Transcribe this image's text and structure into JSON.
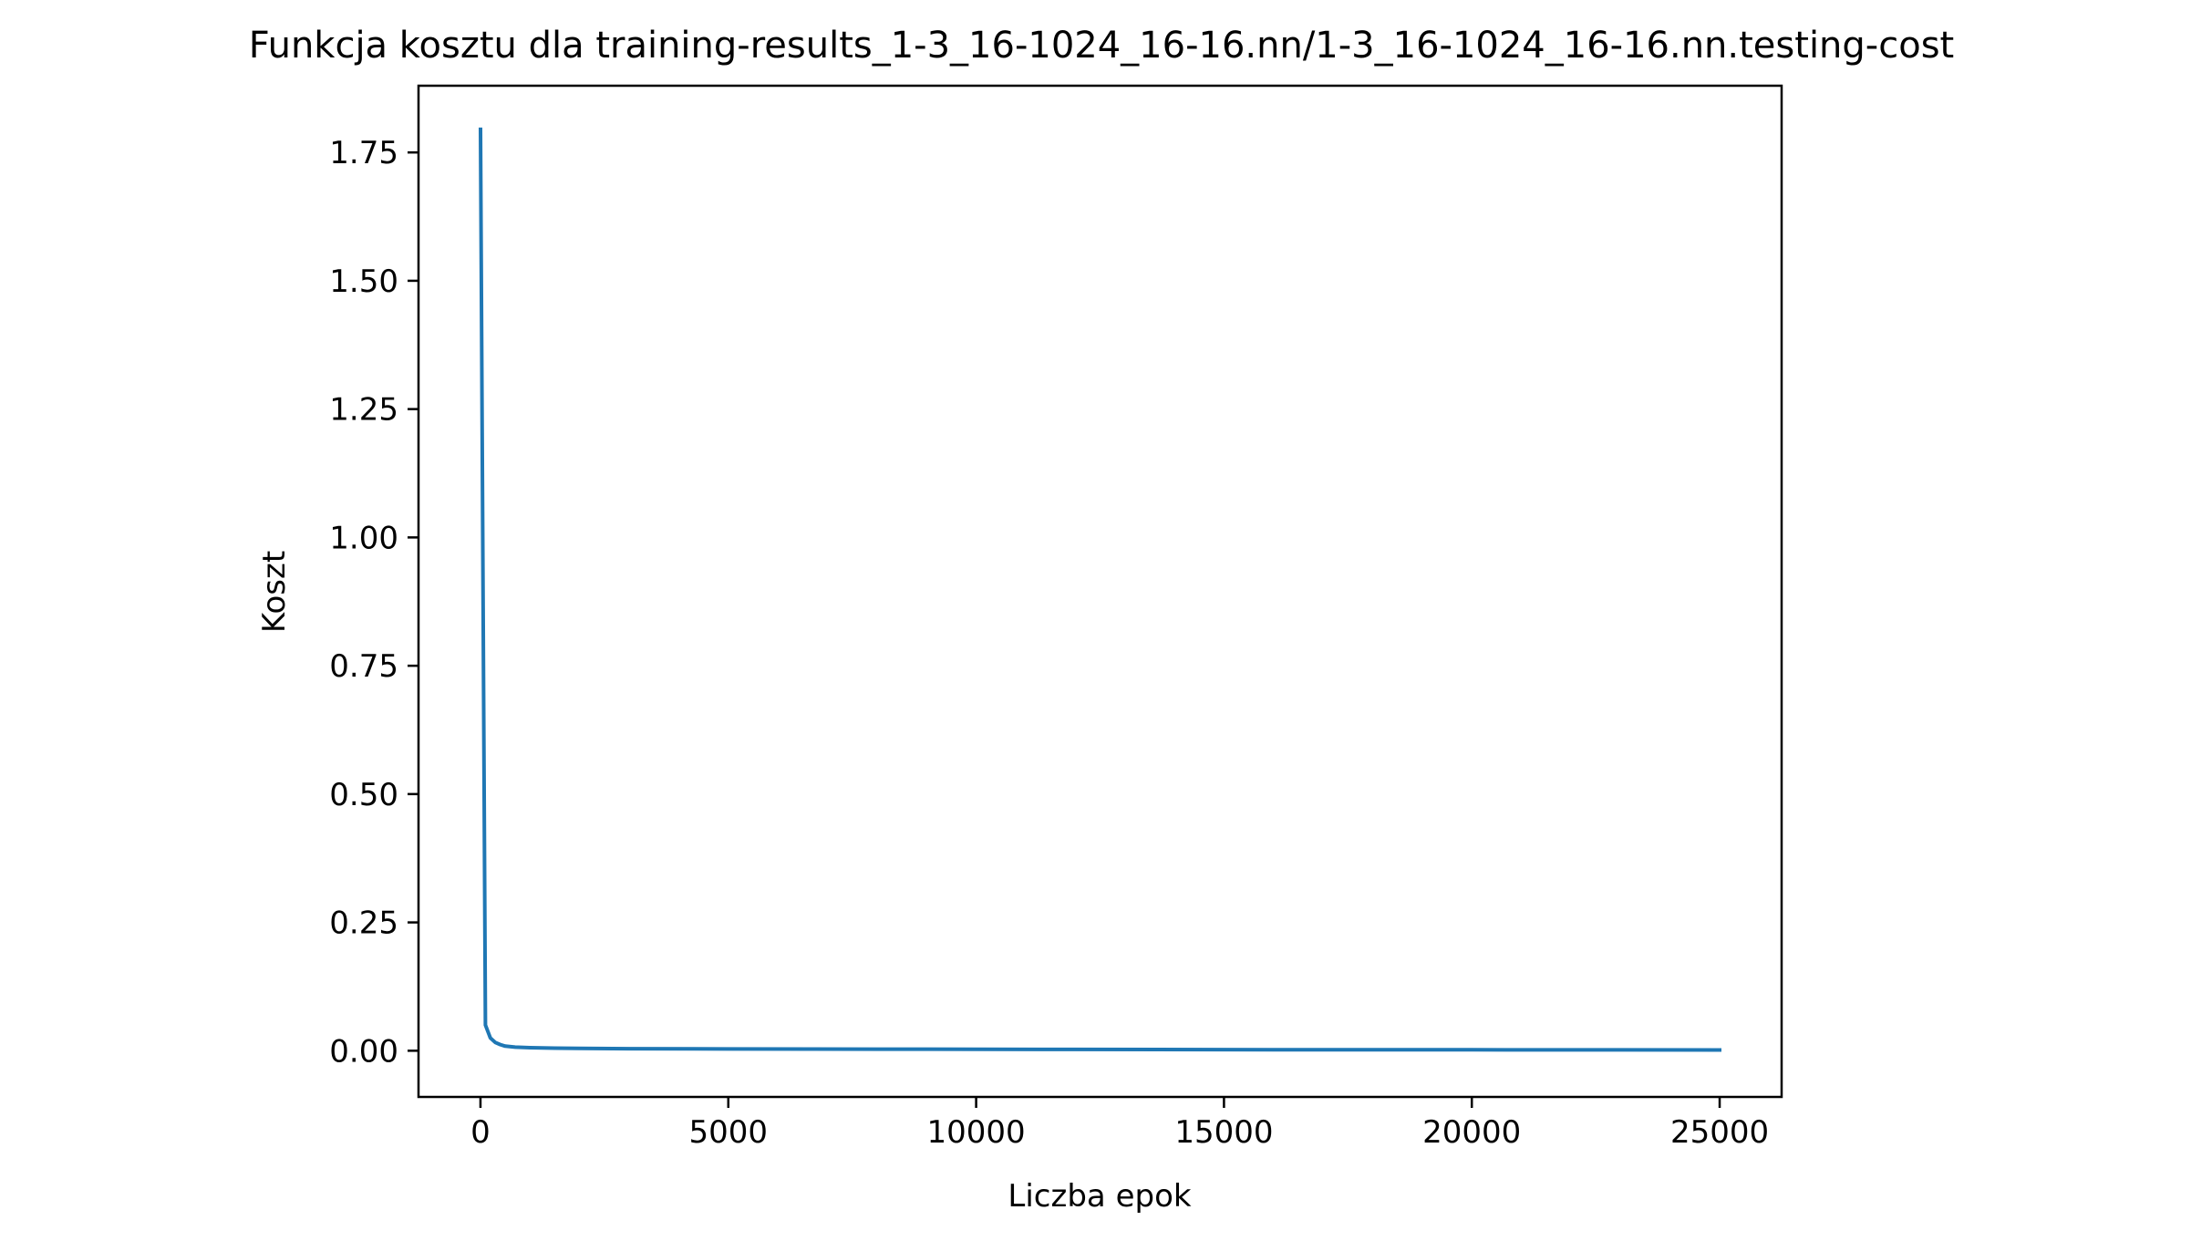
{
  "chart_data": {
    "type": "line",
    "title": "Funkcja kosztu dla training-results_1-3_16-1024_16-16.nn/1-3_16-1024_16-16.nn.testing-cost",
    "xlabel": "Liczba epok",
    "ylabel": "Koszt",
    "xlim": [
      -1250,
      26250
    ],
    "ylim": [
      -0.09,
      1.88
    ],
    "x_ticks": [
      0,
      5000,
      10000,
      15000,
      20000,
      25000
    ],
    "x_tick_labels": [
      "0",
      "5000",
      "10000",
      "15000",
      "20000",
      "25000"
    ],
    "y_ticks": [
      0.0,
      0.25,
      0.5,
      0.75,
      1.0,
      1.25,
      1.5,
      1.75
    ],
    "y_tick_labels": [
      "0.00",
      "0.25",
      "0.50",
      "0.75",
      "1.00",
      "1.25",
      "1.50",
      "1.75"
    ],
    "grid": false,
    "series": [
      {
        "color": "#1f77b4",
        "x": [
          0,
          100,
          200,
          300,
          400,
          500,
          700,
          1000,
          1500,
          2000,
          3000,
          5000,
          8000,
          12000,
          16000,
          20000,
          25000
        ],
        "y": [
          1.795,
          0.05,
          0.025,
          0.016,
          0.012,
          0.009,
          0.007,
          0.006,
          0.005,
          0.0045,
          0.004,
          0.0035,
          0.003,
          0.0025,
          0.002,
          0.0018,
          0.0015
        ]
      }
    ]
  }
}
